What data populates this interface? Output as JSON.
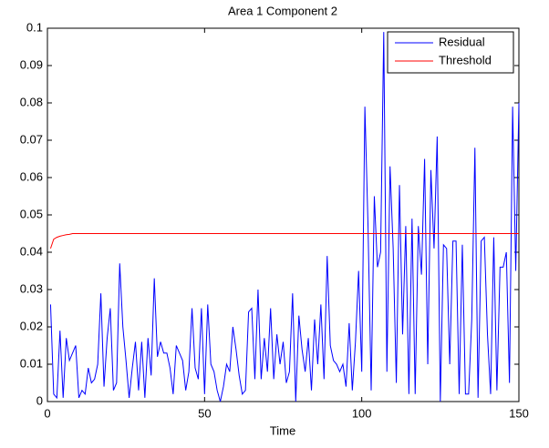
{
  "chart_data": {
    "type": "line",
    "title": "Area 1 Component 2",
    "xlabel": "Time",
    "xlim": [
      0,
      150
    ],
    "ylim": [
      0,
      0.1
    ],
    "xticks": [
      0,
      50,
      100,
      150
    ],
    "yticks": [
      0,
      0.01,
      0.02,
      0.03,
      0.04,
      0.05,
      0.06,
      0.07,
      0.08,
      0.09,
      0.1
    ],
    "legend": "upper right",
    "series": [
      {
        "name": "Residual",
        "color": "#0000ff",
        "x": [
          1,
          2,
          3,
          4,
          5,
          6,
          7,
          8,
          9,
          10,
          11,
          12,
          13,
          14,
          15,
          16,
          17,
          18,
          19,
          20,
          21,
          22,
          23,
          24,
          25,
          26,
          27,
          28,
          29,
          30,
          31,
          32,
          33,
          34,
          35,
          36,
          37,
          38,
          39,
          40,
          41,
          42,
          43,
          44,
          45,
          46,
          47,
          48,
          49,
          50,
          51,
          52,
          53,
          54,
          55,
          56,
          57,
          58,
          59,
          60,
          61,
          62,
          63,
          64,
          65,
          66,
          67,
          68,
          69,
          70,
          71,
          72,
          73,
          74,
          75,
          76,
          77,
          78,
          79,
          80,
          81,
          82,
          83,
          84,
          85,
          86,
          87,
          88,
          89,
          90,
          91,
          92,
          93,
          94,
          95,
          96,
          97,
          98,
          99,
          100,
          101,
          102,
          103,
          104,
          105,
          106,
          107,
          108,
          109,
          110,
          111,
          112,
          113,
          114,
          115,
          116,
          117,
          118,
          119,
          120,
          121,
          122,
          123,
          124,
          125,
          126,
          127,
          128,
          129,
          130,
          131,
          132,
          133,
          134,
          135,
          136,
          137,
          138,
          139,
          140,
          141,
          142,
          143,
          144,
          145,
          146,
          147,
          148,
          149,
          150
        ],
        "values": [
          0.026,
          0.002,
          0.001,
          0.019,
          0.001,
          0.017,
          0.011,
          0.013,
          0.015,
          0.001,
          0.003,
          0.002,
          0.009,
          0.005,
          0.006,
          0.01,
          0.029,
          0.004,
          0.017,
          0.025,
          0.003,
          0.005,
          0.037,
          0.02,
          0.011,
          0.001,
          0.009,
          0.016,
          0.003,
          0.016,
          0.001,
          0.017,
          0.007,
          0.033,
          0.012,
          0.016,
          0.013,
          0.013,
          0.009,
          0.002,
          0.015,
          0.013,
          0.011,
          0.003,
          0.008,
          0.025,
          0.009,
          0.006,
          0.025,
          0.002,
          0.026,
          0.01,
          0.008,
          0.003,
          0.0,
          0.004,
          0.01,
          0.008,
          0.02,
          0.014,
          0.007,
          0.002,
          0.003,
          0.024,
          0.025,
          0.006,
          0.03,
          0.006,
          0.017,
          0.008,
          0.025,
          0.006,
          0.018,
          0.01,
          0.016,
          0.005,
          0.008,
          0.029,
          0.0,
          0.023,
          0.014,
          0.008,
          0.017,
          0.003,
          0.022,
          0.01,
          0.026,
          0.006,
          0.039,
          0.015,
          0.011,
          0.01,
          0.008,
          0.01,
          0.004,
          0.021,
          0.003,
          0.016,
          0.035,
          0.008,
          0.079,
          0.047,
          0.003,
          0.055,
          0.036,
          0.04,
          0.099,
          0.008,
          0.063,
          0.041,
          0.005,
          0.058,
          0.018,
          0.047,
          0.002,
          0.049,
          0.002,
          0.047,
          0.034,
          0.065,
          0.01,
          0.062,
          0.041,
          0.071,
          0.0,
          0.042,
          0.041,
          0.01,
          0.043,
          0.043,
          0.002,
          0.042,
          0.002,
          0.002,
          0.022,
          0.068,
          0.001,
          0.043,
          0.044,
          0.018,
          0.002,
          0.044,
          0.003,
          0.036,
          0.036,
          0.04,
          0.005,
          0.079,
          0.035,
          0.08
        ]
      },
      {
        "name": "Threshold",
        "color": "#ff0000",
        "x": [
          1,
          2,
          3,
          4,
          5,
          6,
          7,
          8,
          150
        ],
        "values": [
          0.041,
          0.0435,
          0.044,
          0.0443,
          0.0445,
          0.0447,
          0.0448,
          0.045,
          0.045
        ]
      }
    ]
  }
}
